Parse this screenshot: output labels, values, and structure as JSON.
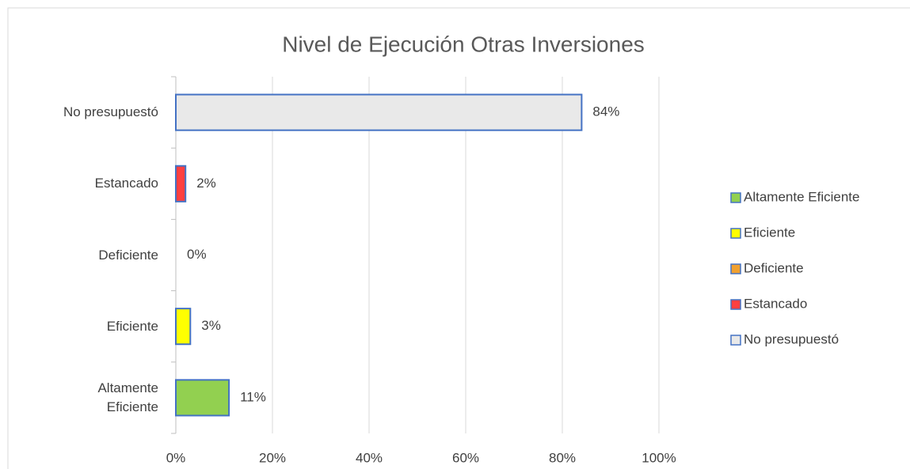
{
  "chart_data": {
    "type": "bar",
    "orientation": "horizontal",
    "title": "Nivel de Ejecución  Otras Inversiones",
    "categories": [
      "Altamente Eficiente",
      "Eficiente",
      "Deficiente",
      "Estancado",
      "No presupuestó"
    ],
    "values": [
      11,
      3,
      0,
      2,
      84
    ],
    "value_labels": [
      "11%",
      "3%",
      "0%",
      "2%",
      "84%"
    ],
    "colors": [
      "#92d050",
      "#ffff00",
      "#f0a030",
      "#ff4040",
      "#e9e9e9"
    ],
    "border_color": "#4472c4",
    "xlim": [
      0,
      100
    ],
    "xticks": [
      {
        "value": 0,
        "label": "0%"
      },
      {
        "value": 20,
        "label": "20%"
      },
      {
        "value": 40,
        "label": "40%"
      },
      {
        "value": 60,
        "label": "60%"
      },
      {
        "value": 80,
        "label": "80%"
      },
      {
        "value": 100,
        "label": "100%"
      }
    ],
    "grid": true,
    "legend": "right"
  }
}
